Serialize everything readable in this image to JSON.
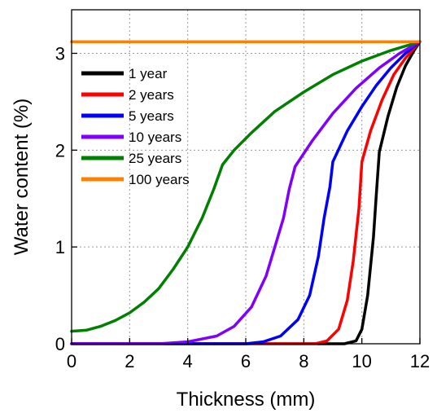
{
  "chart_data": {
    "type": "line",
    "title": "",
    "xlabel": "Thickness (mm)",
    "ylabel": "Water content (%)",
    "xlim": [
      0,
      12
    ],
    "ylim": [
      0,
      3.45
    ],
    "xticks": [
      "0",
      "2",
      "4",
      "6",
      "8",
      "10",
      "12"
    ],
    "yticks": [
      "0",
      "1",
      "2",
      "3"
    ],
    "grid": "dotted",
    "legend_position": "top-left",
    "series": [
      {
        "name": "1 year",
        "color": "#000000",
        "points": [
          [
            0,
            0
          ],
          [
            9.4,
            0
          ],
          [
            9.8,
            0.03
          ],
          [
            10.0,
            0.15
          ],
          [
            10.2,
            0.5
          ],
          [
            10.4,
            1.1
          ],
          [
            10.5,
            1.55
          ],
          [
            10.6,
            1.98
          ],
          [
            10.9,
            2.35
          ],
          [
            11.2,
            2.65
          ],
          [
            11.5,
            2.87
          ],
          [
            11.8,
            3.03
          ],
          [
            12.0,
            3.12
          ]
        ]
      },
      {
        "name": "2 years",
        "color": "#ff0000",
        "points": [
          [
            0,
            0
          ],
          [
            8.4,
            0
          ],
          [
            8.8,
            0.03
          ],
          [
            9.2,
            0.15
          ],
          [
            9.5,
            0.45
          ],
          [
            9.7,
            0.85
          ],
          [
            9.9,
            1.4
          ],
          [
            10.0,
            1.88
          ],
          [
            10.3,
            2.2
          ],
          [
            10.7,
            2.52
          ],
          [
            11.1,
            2.78
          ],
          [
            11.5,
            2.95
          ],
          [
            12.0,
            3.12
          ]
        ]
      },
      {
        "name": "5 years",
        "color": "#0000ff",
        "points": [
          [
            0,
            0
          ],
          [
            6.0,
            0
          ],
          [
            6.6,
            0.02
          ],
          [
            7.2,
            0.08
          ],
          [
            7.8,
            0.25
          ],
          [
            8.2,
            0.5
          ],
          [
            8.5,
            0.9
          ],
          [
            8.7,
            1.3
          ],
          [
            8.9,
            1.62
          ],
          [
            9.0,
            1.88
          ],
          [
            9.5,
            2.2
          ],
          [
            10.0,
            2.45
          ],
          [
            10.5,
            2.67
          ],
          [
            11.0,
            2.85
          ],
          [
            11.5,
            3.0
          ],
          [
            12.0,
            3.12
          ]
        ]
      },
      {
        "name": "10 years",
        "color": "#8000ff",
        "points": [
          [
            0,
            0
          ],
          [
            3.0,
            0
          ],
          [
            4.0,
            0.02
          ],
          [
            5.0,
            0.08
          ],
          [
            5.6,
            0.18
          ],
          [
            6.2,
            0.38
          ],
          [
            6.7,
            0.7
          ],
          [
            7.0,
            1.0
          ],
          [
            7.3,
            1.3
          ],
          [
            7.5,
            1.6
          ],
          [
            7.7,
            1.83
          ],
          [
            8.3,
            2.1
          ],
          [
            9.0,
            2.38
          ],
          [
            9.8,
            2.64
          ],
          [
            10.6,
            2.85
          ],
          [
            11.3,
            3.0
          ],
          [
            12.0,
            3.12
          ]
        ]
      },
      {
        "name": "25 years",
        "color": "#008000",
        "points": [
          [
            0,
            0.13
          ],
          [
            0.5,
            0.14
          ],
          [
            1.0,
            0.18
          ],
          [
            1.5,
            0.24
          ],
          [
            2.0,
            0.32
          ],
          [
            2.5,
            0.43
          ],
          [
            3.0,
            0.57
          ],
          [
            3.5,
            0.77
          ],
          [
            4.0,
            1.0
          ],
          [
            4.5,
            1.3
          ],
          [
            4.9,
            1.6
          ],
          [
            5.2,
            1.85
          ],
          [
            5.6,
            2.0
          ],
          [
            6.2,
            2.18
          ],
          [
            7.0,
            2.4
          ],
          [
            8.0,
            2.6
          ],
          [
            9.0,
            2.78
          ],
          [
            10.0,
            2.92
          ],
          [
            11.0,
            3.03
          ],
          [
            12.0,
            3.12
          ]
        ]
      },
      {
        "name": "100 years",
        "color": "#ff8000",
        "points": [
          [
            0,
            3.12
          ],
          [
            12.0,
            3.12
          ]
        ]
      }
    ]
  }
}
